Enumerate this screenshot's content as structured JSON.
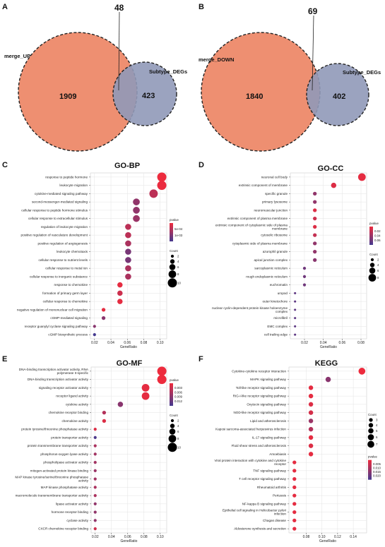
{
  "venn": [
    {
      "panel": "A",
      "left_set": "merge_UP",
      "right_set": "Subtype_DEGs",
      "left_only": "1909",
      "overlap": "48",
      "right_only": "423"
    },
    {
      "panel": "B",
      "left_set": "merge_DOWN",
      "right_set": "Subtype_DEGs",
      "left_only": "1840",
      "overlap": "69",
      "right_only": "402"
    }
  ],
  "colors": {
    "venn_left": "#ee8f71",
    "venn_right": "#9099b8",
    "low_p": "#e8283a",
    "high_p": "#473a8f"
  },
  "chart_data": [
    {
      "panel": "C",
      "type": "scatter",
      "title": "GO-BP",
      "xlabel": "GeneRatio",
      "ylabel": "",
      "xlim": [
        0.015,
        0.108
      ],
      "xticks": [
        "0.02",
        "0.04",
        "0.06",
        "0.08",
        "0.10"
      ],
      "xtick_values": [
        0.02,
        0.04,
        0.06,
        0.08,
        0.1
      ],
      "legend_color_title": "pvalue",
      "legend_color_ticks": [
        "5e-04",
        "1e-03"
      ],
      "legend_size_title": "Count",
      "legend_size_ticks": [
        "2",
        "4",
        "6",
        "8",
        "10"
      ],
      "points": [
        {
          "term": "response to peptide hormone",
          "x": 0.102,
          "count": 10,
          "color": 0.0
        },
        {
          "term": "leukocyte migration",
          "x": 0.102,
          "count": 10,
          "color": 0.02
        },
        {
          "term": "cytokine-mediated signaling pathway",
          "x": 0.092,
          "count": 9,
          "color": 0.3
        },
        {
          "term": "second-messenger-mediated signaling",
          "x": 0.071,
          "count": 7,
          "color": 0.55
        },
        {
          "term": "cellular response to peptide hormone stimulus",
          "x": 0.071,
          "count": 7,
          "color": 0.55
        },
        {
          "term": "cellular response to extracellular stimulus",
          "x": 0.071,
          "count": 7,
          "color": 0.5
        },
        {
          "term": "regulation of leukocyte migration",
          "x": 0.061,
          "count": 6,
          "color": 0.3
        },
        {
          "term": "positive regulation of vasculature development",
          "x": 0.061,
          "count": 6,
          "color": 0.3
        },
        {
          "term": "positive regulation of angiogenesis",
          "x": 0.061,
          "count": 6,
          "color": 0.4
        },
        {
          "term": "leukocyte chemotaxis",
          "x": 0.061,
          "count": 6,
          "color": 0.7
        },
        {
          "term": "cellular response to nutrient levels",
          "x": 0.061,
          "count": 6,
          "color": 0.7
        },
        {
          "term": "cellular response to metal ion",
          "x": 0.061,
          "count": 6,
          "color": 0.4
        },
        {
          "term": "cellular response to inorganic substance",
          "x": 0.061,
          "count": 6,
          "color": 0.4
        },
        {
          "term": "response to chemokine",
          "x": 0.051,
          "count": 5,
          "color": 0.05
        },
        {
          "term": "formation of primary germ layer",
          "x": 0.051,
          "count": 5,
          "color": 0.2
        },
        {
          "term": "cellular response to chemokine",
          "x": 0.051,
          "count": 5,
          "color": 0.05
        },
        {
          "term": "negative regulation of mononuclear cell migration",
          "x": 0.031,
          "count": 3,
          "color": 0.05
        },
        {
          "term": "cGMP-mediated signaling",
          "x": 0.031,
          "count": 3,
          "color": 0.6
        },
        {
          "term": "receptor guanylyl cyclase signaling pathway",
          "x": 0.02,
          "count": 2,
          "color": 0.6
        },
        {
          "term": "cGMP biosynthetic process",
          "x": 0.02,
          "count": 2,
          "color": 1.0
        }
      ]
    },
    {
      "panel": "D",
      "type": "scatter",
      "title": "GO-CC",
      "xlabel": "GeneRatio",
      "ylabel": "",
      "xlim": [
        0.005,
        0.086
      ],
      "xticks": [
        "0.02",
        "0.04",
        "0.06",
        "0.08"
      ],
      "xtick_values": [
        0.02,
        0.04,
        0.06,
        0.08
      ],
      "legend_color_title": "pvalue",
      "legend_color_ticks": [
        "0.02",
        "0.04",
        "0.06"
      ],
      "legend_size_title": "Count",
      "legend_size_ticks": [
        "2",
        "4",
        "6",
        "8"
      ],
      "points": [
        {
          "term": "neuronal cell body",
          "x": 0.081,
          "count": 8,
          "color": 0.05
        },
        {
          "term": "extrinsic component of membrane",
          "x": 0.051,
          "count": 5,
          "color": 0.1
        },
        {
          "term": "specific granule",
          "x": 0.031,
          "count": 3,
          "color": 0.55
        },
        {
          "term": "primary lysosome",
          "x": 0.031,
          "count": 3,
          "color": 0.55
        },
        {
          "term": "neuromuscular junction",
          "x": 0.031,
          "count": 3,
          "color": 0.1
        },
        {
          "term": "extrinsic component of plasma membrane",
          "x": 0.031,
          "count": 3,
          "color": 0.2
        },
        {
          "term": "extrinsic component of cytoplasmic side of plasma membrane",
          "x": 0.031,
          "count": 3,
          "color": 0.1
        },
        {
          "term": "cytosolic ribosome",
          "x": 0.031,
          "count": 3,
          "color": 0.25
        },
        {
          "term": "cytoplasmic side of plasma membrane",
          "x": 0.031,
          "count": 3,
          "color": 0.55
        },
        {
          "term": "azurophil granule",
          "x": 0.031,
          "count": 3,
          "color": 0.55
        },
        {
          "term": "apical junction complex",
          "x": 0.031,
          "count": 3,
          "color": 0.6
        },
        {
          "term": "sarcoplasmic reticulum",
          "x": 0.02,
          "count": 2,
          "color": 0.75
        },
        {
          "term": "rough endoplasmic reticulum",
          "x": 0.02,
          "count": 2,
          "color": 0.75
        },
        {
          "term": "euchromatin",
          "x": 0.02,
          "count": 2,
          "color": 0.75
        },
        {
          "term": "uropod",
          "x": 0.01,
          "count": 1,
          "color": 0.85
        },
        {
          "term": "outer kinetochore",
          "x": 0.01,
          "count": 1,
          "color": 0.85
        },
        {
          "term": "nuclear cyclin-dependent protein kinase holoenzyme complex",
          "x": 0.01,
          "count": 1,
          "color": 0.85
        },
        {
          "term": "microfibril",
          "x": 0.01,
          "count": 1,
          "color": 0.85
        },
        {
          "term": "EMC complex",
          "x": 0.01,
          "count": 1,
          "color": 0.85
        },
        {
          "term": "cell trailing edge",
          "x": 0.01,
          "count": 1,
          "color": 0.85
        }
      ]
    },
    {
      "panel": "E",
      "type": "scatter",
      "title": "GO-MF",
      "xlabel": "GeneRatio",
      "ylabel": "",
      "xlim": [
        0.015,
        0.108
      ],
      "xticks": [
        "0.02",
        "0.04",
        "0.06",
        "0.08",
        "0.10"
      ],
      "xtick_values": [
        0.02,
        0.04,
        0.06,
        0.08,
        0.1
      ],
      "legend_color_title": "pvalue",
      "legend_color_ticks": [
        "0.003",
        "0.006",
        "0.009",
        "0.012"
      ],
      "legend_size_title": "Count",
      "legend_size_ticks": [
        "2",
        "4",
        "6",
        "8",
        "10"
      ],
      "points": [
        {
          "term": "DNA-binding transcription activator activity, RNA polymerase II-specific",
          "x": 0.102,
          "count": 10,
          "color": 0.0
        },
        {
          "term": "DNA-binding transcription activator activity",
          "x": 0.102,
          "count": 10,
          "color": 0.0
        },
        {
          "term": "signaling receptor activator activity",
          "x": 0.082,
          "count": 8,
          "color": 0.05
        },
        {
          "term": "receptor ligand activity",
          "x": 0.082,
          "count": 8,
          "color": 0.05
        },
        {
          "term": "cytokine activity",
          "x": 0.051,
          "count": 5,
          "color": 0.6
        },
        {
          "term": "chemokine receptor binding",
          "x": 0.031,
          "count": 3,
          "color": 0.35
        },
        {
          "term": "chemokine activity",
          "x": 0.031,
          "count": 3,
          "color": 0.1
        },
        {
          "term": "protein tyrosine/threonine phosphatase activity",
          "x": 0.02,
          "count": 2,
          "color": 0.1
        },
        {
          "term": "protein transporter activity",
          "x": 0.02,
          "count": 2,
          "color": 0.95
        },
        {
          "term": "protein transmembrane transporter activity",
          "x": 0.02,
          "count": 2,
          "color": 0.4
        },
        {
          "term": "phosphorus-oxygen lyase activity",
          "x": 0.02,
          "count": 2,
          "color": 0.45
        },
        {
          "term": "phospholipase activator activity",
          "x": 0.02,
          "count": 2,
          "color": 0.45
        },
        {
          "term": "mitogen-activated protein kinase binding",
          "x": 0.02,
          "count": 2,
          "color": 0.5
        },
        {
          "term": "MAP kinase tyrosine/serine/threonine phosphatase activity",
          "x": 0.02,
          "count": 2,
          "color": 0.45
        },
        {
          "term": "MAP kinase phosphatase activity",
          "x": 0.02,
          "count": 2,
          "color": 0.4
        },
        {
          "term": "macromolecule transmembrane transporter activity",
          "x": 0.02,
          "count": 2,
          "color": 0.4
        },
        {
          "term": "lipase activator activity",
          "x": 0.02,
          "count": 2,
          "color": 0.55
        },
        {
          "term": "hormone receptor binding",
          "x": 0.02,
          "count": 2,
          "color": 0.55
        },
        {
          "term": "cyclase activity",
          "x": 0.02,
          "count": 2,
          "color": 0.55
        },
        {
          "term": "CXCR chemokine receptor binding",
          "x": 0.02,
          "count": 2,
          "color": 0.2
        }
      ]
    },
    {
      "panel": "F",
      "type": "scatter",
      "title": "KEGG",
      "xlabel": "GeneRatio",
      "ylabel": "",
      "xlim": [
        0.058,
        0.157
      ],
      "xticks": [
        "0.08",
        "0.10",
        "0.12",
        "0.14"
      ],
      "xtick_values": [
        0.08,
        0.1,
        0.12,
        0.14
      ],
      "legend_size_title": "Count",
      "legend_size_ticks": [
        "3",
        "4",
        "5",
        "6",
        "7"
      ],
      "legend_color_title": "pvalue",
      "legend_color_ticks": [
        "0.005",
        "0.010",
        "0.015",
        "0.020"
      ],
      "points": [
        {
          "term": "Cytokine-cytokine receptor interaction",
          "x": 0.151,
          "count": 7,
          "color": 0.0
        },
        {
          "term": "MAPK signaling pathway",
          "x": 0.108,
          "count": 5,
          "color": 0.6
        },
        {
          "term": "Toll-like receptor signaling pathway",
          "x": 0.086,
          "count": 4,
          "color": 0.05
        },
        {
          "term": "RIG-I-like receptor signaling pathway",
          "x": 0.086,
          "count": 4,
          "color": 0.05
        },
        {
          "term": "Oxytocin signaling pathway",
          "x": 0.086,
          "count": 4,
          "color": 0.1
        },
        {
          "term": "NOD-like receptor signaling pathway",
          "x": 0.086,
          "count": 4,
          "color": 0.15
        },
        {
          "term": "Lipid and atherosclerosis",
          "x": 0.086,
          "count": 4,
          "color": 0.5
        },
        {
          "term": "Kaposi sarcoma-associated herpesvirus infection",
          "x": 0.086,
          "count": 4,
          "color": 0.35
        },
        {
          "term": "IL-17 signaling pathway",
          "x": 0.086,
          "count": 4,
          "color": 0.05
        },
        {
          "term": "Fluid shear stress and atherosclerosis",
          "x": 0.086,
          "count": 4,
          "color": 0.1
        },
        {
          "term": "Amoebiasis",
          "x": 0.086,
          "count": 4,
          "color": 0.05
        },
        {
          "term": "Viral protein interaction with cytokine and cytokine receptor",
          "x": 0.065,
          "count": 3,
          "color": 0.05
        },
        {
          "term": "TNF signaling pathway",
          "x": 0.065,
          "count": 3,
          "color": 0.05
        },
        {
          "term": "T cell receptor signaling pathway",
          "x": 0.065,
          "count": 3,
          "color": 0.05
        },
        {
          "term": "Rheumatoid arthritis",
          "x": 0.065,
          "count": 3,
          "color": 0.05
        },
        {
          "term": "Pertussis",
          "x": 0.065,
          "count": 3,
          "color": 0.05
        },
        {
          "term": "NF-kappa B signaling pathway",
          "x": 0.065,
          "count": 3,
          "color": 0.05
        },
        {
          "term": "Epithelial cell signaling in Helicobacter pylori infection",
          "x": 0.065,
          "count": 3,
          "color": 0.05
        },
        {
          "term": "Chagas disease",
          "x": 0.065,
          "count": 3,
          "color": 0.05
        },
        {
          "term": "Aldosterone synthesis and secretion",
          "x": 0.065,
          "count": 3,
          "color": 0.05
        }
      ]
    }
  ]
}
